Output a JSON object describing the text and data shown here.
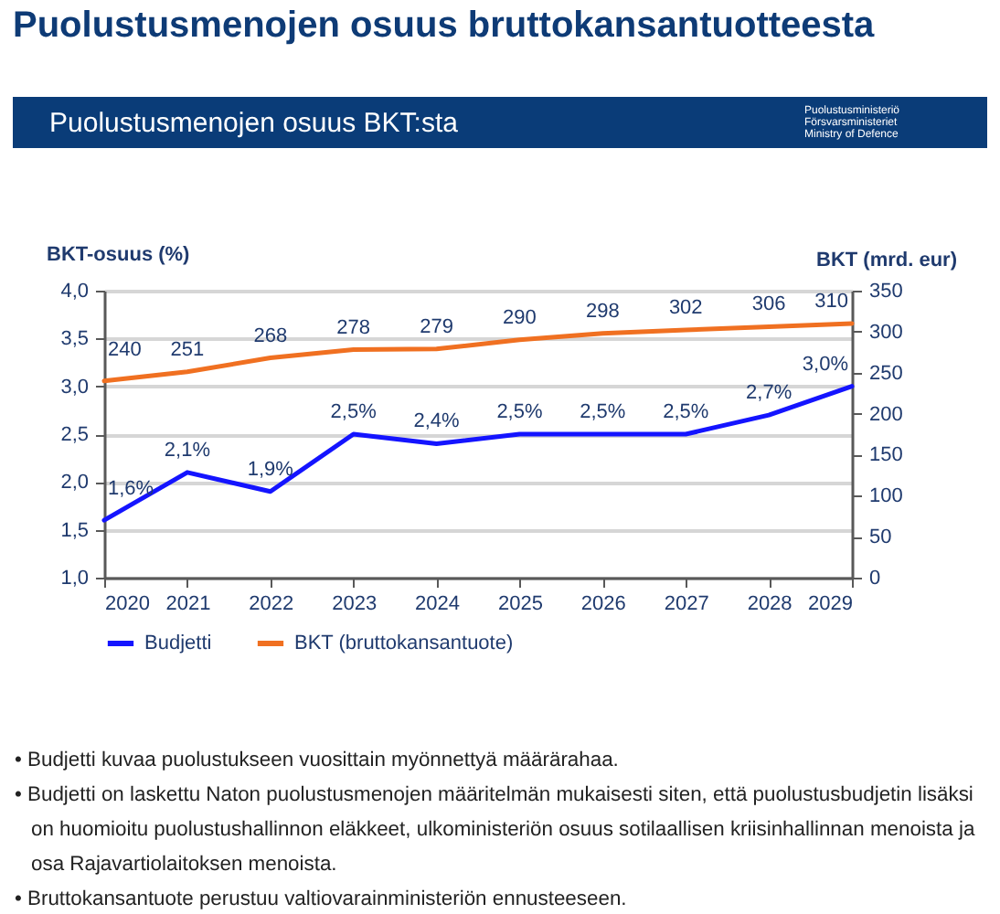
{
  "chart_data": {
    "type": "line",
    "title": "Puolustusmenojen osuus bruttokansantuotteesta",
    "subtitle": "Puolustusmenojen osuus BKT:sta",
    "ylabel": "BKT-osuus (%)",
    "y2label": "BKT (mrd. eur)",
    "x": [
      2020,
      2021,
      2022,
      2023,
      2024,
      2025,
      2026,
      2027,
      2028,
      2029
    ],
    "xlim": [
      2020,
      2029
    ],
    "xticks": [
      2020,
      2021,
      2022,
      2023,
      2024,
      2025,
      2026,
      2027,
      2028,
      2029
    ],
    "ylim": [
      1,
      4
    ],
    "yticks": [
      {
        "value": 1,
        "label": "1,0"
      },
      {
        "value": 1.5,
        "label": "1,5"
      },
      {
        "value": 2,
        "label": "2,0"
      },
      {
        "value": 2.5,
        "label": "2,5"
      },
      {
        "value": 3,
        "label": "3,0"
      },
      {
        "value": 3.5,
        "label": "3,5"
      },
      {
        "value": 4,
        "label": "4,0"
      }
    ],
    "y2lim": [
      0,
      350
    ],
    "y2ticks": [
      0,
      50,
      100,
      150,
      200,
      250,
      300,
      350
    ],
    "series": [
      {
        "name": "Budjetti",
        "color": "#1414ff",
        "values": [
          1.6,
          2.1,
          1.9,
          2.5,
          2.4,
          2.5,
          2.5,
          2.5,
          2.7,
          3.0
        ],
        "value_labels": [
          "1,6%",
          "2,1%",
          "1,9%",
          "2,5%",
          "2,4%",
          "2,5%",
          "2,5%",
          "2,5%",
          "2,7%",
          "3,0%"
        ]
      },
      {
        "name": "BKT (bruttokansantuote)",
        "color": "#f07021",
        "axis": "y2",
        "values": [
          240,
          251,
          268,
          278,
          279,
          290,
          298,
          302,
          306,
          310
        ],
        "value_labels": [
          "240",
          "251",
          "268",
          "278",
          "279",
          "290",
          "298",
          "302",
          "306",
          "310"
        ]
      }
    ],
    "grid": "y",
    "legend": "bottom",
    "marker": "none",
    "line_style": "solid",
    "annotations": [
      "Puolustusministeriö",
      "Försvarsministeriet",
      "Ministry of Defence",
      "• Budjetti kuvaa puolustukseen vuosittain myönnettyä määrärahaa.",
      "• Budjetti on laskettu Naton puolustusmenojen määritelmän mukaisesti siten, että puolustusbudjetin lisäksi on huomioitu puolustushallinnon eläkkeet, ulkoministeriön osuus sotilaallisen kriisinhallinnan menoista ja osa Rajavartiolaitoksen menoista.",
      "• Bruttokansantuote perustuu valtiovarainministeriön ennusteeseen."
    ]
  }
}
